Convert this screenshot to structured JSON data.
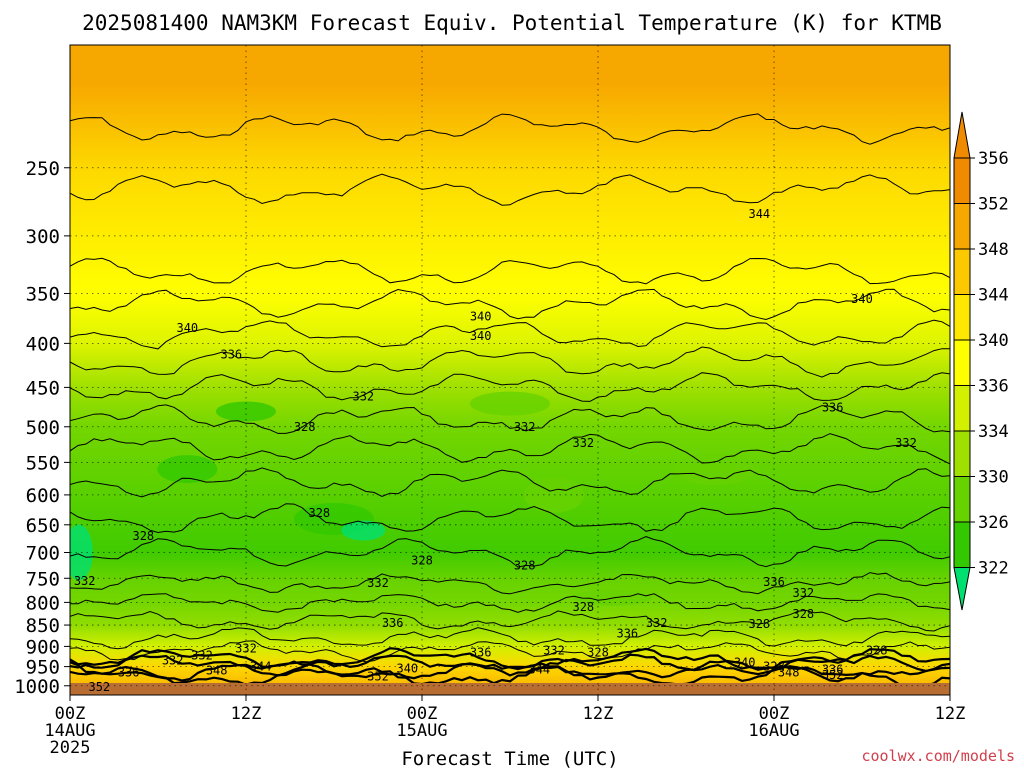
{
  "chart_data": {
    "type": "heatmap",
    "title": "2025081400 NAM3KM Forecast Equiv. Potential Temperature (K) for KTMB",
    "xlabel": "Forecast Time (UTC)",
    "ylabel": "",
    "watermark": "coolwx.com/models",
    "y_axis": {
      "scale": "log-pressure",
      "range_hpa": [
        1025,
        180
      ],
      "ticks": [
        250,
        300,
        350,
        400,
        450,
        500,
        550,
        600,
        650,
        700,
        750,
        800,
        850,
        900,
        950,
        1000
      ]
    },
    "x_axis": {
      "range_hours": [
        0,
        60
      ],
      "ticks": [
        {
          "hour": 0,
          "label": "00Z",
          "sub": [
            "14AUG",
            "2025"
          ]
        },
        {
          "hour": 12,
          "label": "12Z",
          "sub": []
        },
        {
          "hour": 24,
          "label": "00Z",
          "sub": [
            "15AUG"
          ]
        },
        {
          "hour": 36,
          "label": "12Z",
          "sub": []
        },
        {
          "hour": 48,
          "label": "00Z",
          "sub": [
            "16AUG"
          ]
        },
        {
          "hour": 60,
          "label": "12Z",
          "sub": []
        }
      ]
    },
    "grid": true,
    "colorbar": {
      "placement": "right",
      "labels": [
        356,
        352,
        348,
        344,
        340,
        336,
        334,
        330,
        326,
        322
      ],
      "colors": [
        "#f08a00",
        "#f7a800",
        "#fcc800",
        "#fee700",
        "#ffff00",
        "#d2f000",
        "#9fe000",
        "#66d200",
        "#33c800",
        "#00e070"
      ]
    },
    "levels": [
      {
        "hpa": 200,
        "theta": 352
      },
      {
        "hpa": 250,
        "theta": 346
      },
      {
        "hpa": 300,
        "theta": 343
      },
      {
        "hpa": 350,
        "theta": 340
      },
      {
        "hpa": 400,
        "theta": 337
      },
      {
        "hpa": 450,
        "theta": 334
      },
      {
        "hpa": 500,
        "theta": 331
      },
      {
        "hpa": 600,
        "theta": 329
      },
      {
        "hpa": 700,
        "theta": 327
      },
      {
        "hpa": 750,
        "theta": 330
      },
      {
        "hpa": 800,
        "theta": 331
      },
      {
        "hpa": 850,
        "theta": 333
      },
      {
        "hpa": 900,
        "theta": 336
      },
      {
        "hpa": 950,
        "theta": 346
      },
      {
        "hpa": 1000,
        "theta": 350
      }
    ],
    "contour_labels": [
      {
        "hour": 47,
        "hpa": 283,
        "text": "344"
      },
      {
        "hour": 54,
        "hpa": 355,
        "text": "340"
      },
      {
        "hour": 28,
        "hpa": 372,
        "text": "340"
      },
      {
        "hour": 28,
        "hpa": 392,
        "text": "340"
      },
      {
        "hour": 8,
        "hpa": 384,
        "text": "340"
      },
      {
        "hour": 11,
        "hpa": 412,
        "text": "336"
      },
      {
        "hour": 52,
        "hpa": 475,
        "text": "336"
      },
      {
        "hour": 20,
        "hpa": 461,
        "text": "332"
      },
      {
        "hour": 31,
        "hpa": 500,
        "text": "332"
      },
      {
        "hour": 35,
        "hpa": 522,
        "text": "332"
      },
      {
        "hour": 57,
        "hpa": 522,
        "text": "332"
      },
      {
        "hour": 16,
        "hpa": 500,
        "text": "328"
      },
      {
        "hour": 17,
        "hpa": 630,
        "text": "328"
      },
      {
        "hour": 5,
        "hpa": 670,
        "text": "328"
      },
      {
        "hour": 24,
        "hpa": 715,
        "text": "328"
      },
      {
        "hour": 31,
        "hpa": 725,
        "text": "328"
      },
      {
        "hour": 21,
        "hpa": 760,
        "text": "332"
      },
      {
        "hour": 1,
        "hpa": 755,
        "text": "332"
      },
      {
        "hour": 35,
        "hpa": 810,
        "text": "328"
      },
      {
        "hour": 48,
        "hpa": 758,
        "text": "336"
      },
      {
        "hour": 50,
        "hpa": 780,
        "text": "332"
      },
      {
        "hour": 50,
        "hpa": 825,
        "text": "328"
      },
      {
        "hour": 47,
        "hpa": 848,
        "text": "328"
      },
      {
        "hour": 22,
        "hpa": 845,
        "text": "336"
      },
      {
        "hour": 40,
        "hpa": 845,
        "text": "332"
      },
      {
        "hour": 38,
        "hpa": 870,
        "text": "336"
      },
      {
        "hour": 12,
        "hpa": 905,
        "text": "332"
      },
      {
        "hour": 28,
        "hpa": 915,
        "text": "336"
      },
      {
        "hour": 33,
        "hpa": 910,
        "text": "332"
      },
      {
        "hour": 36,
        "hpa": 915,
        "text": "328"
      },
      {
        "hour": 55,
        "hpa": 910,
        "text": "328"
      },
      {
        "hour": 9,
        "hpa": 922,
        "text": "332"
      },
      {
        "hour": 7,
        "hpa": 935,
        "text": "332"
      },
      {
        "hour": 13,
        "hpa": 950,
        "text": "344"
      },
      {
        "hour": 10,
        "hpa": 960,
        "text": "348"
      },
      {
        "hour": 4,
        "hpa": 965,
        "text": "336"
      },
      {
        "hour": 23,
        "hpa": 955,
        "text": "340"
      },
      {
        "hour": 21,
        "hpa": 975,
        "text": "352"
      },
      {
        "hour": 32,
        "hpa": 958,
        "text": "344"
      },
      {
        "hour": 46,
        "hpa": 940,
        "text": "340"
      },
      {
        "hour": 48,
        "hpa": 950,
        "text": "328"
      },
      {
        "hour": 49,
        "hpa": 965,
        "text": "348"
      },
      {
        "hour": 52,
        "hpa": 958,
        "text": "336"
      },
      {
        "hour": 52,
        "hpa": 972,
        "text": "352"
      },
      {
        "hour": 2,
        "hpa": 1003,
        "text": "352"
      }
    ]
  }
}
